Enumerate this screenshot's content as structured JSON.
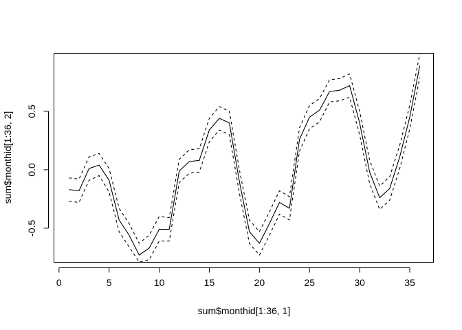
{
  "chart_data": {
    "type": "line",
    "title": "",
    "xlabel": "sum$monthid[1:36, 1]",
    "ylabel": "sum$monthid[1:36, 2]",
    "xlim": [
      0,
      36.5
    ],
    "ylim": [
      -0.79,
      0.99
    ],
    "x_ticks": [
      0,
      5,
      10,
      15,
      20,
      25,
      30,
      35
    ],
    "y_ticks": [
      -0.5,
      0.0,
      0.5
    ],
    "y_tick_labels": [
      "-0.5",
      "0.0",
      "0.5"
    ],
    "grid": false,
    "legend": "none",
    "x": [
      1,
      2,
      3,
      4,
      5,
      6,
      7,
      8,
      9,
      10,
      11,
      12,
      13,
      14,
      15,
      16,
      17,
      18,
      19,
      20,
      21,
      22,
      23,
      24,
      25,
      26,
      27,
      28,
      29,
      30,
      31,
      32,
      33,
      34,
      35,
      36
    ],
    "series": [
      {
        "style": "solid",
        "color": "#000000",
        "values": [
          -0.17,
          -0.18,
          0.01,
          0.04,
          -0.09,
          -0.43,
          -0.56,
          -0.73,
          -0.67,
          -0.51,
          -0.51,
          -0.01,
          0.07,
          0.08,
          0.34,
          0.44,
          0.4,
          -0.1,
          -0.53,
          -0.63,
          -0.46,
          -0.28,
          -0.33,
          0.26,
          0.45,
          0.51,
          0.67,
          0.68,
          0.72,
          0.4,
          -0.02,
          -0.24,
          -0.16,
          0.11,
          0.45,
          0.89
        ]
      },
      {
        "style": "dashed",
        "color": "#000000",
        "values": [
          -0.07,
          -0.08,
          0.11,
          0.14,
          0.01,
          -0.33,
          -0.46,
          -0.63,
          -0.56,
          -0.4,
          -0.41,
          0.09,
          0.17,
          0.18,
          0.44,
          0.54,
          0.5,
          0.0,
          -0.43,
          -0.53,
          -0.36,
          -0.18,
          -0.23,
          0.36,
          0.55,
          0.61,
          0.77,
          0.78,
          0.82,
          0.5,
          0.08,
          -0.14,
          -0.06,
          0.21,
          0.55,
          0.99
        ]
      },
      {
        "style": "dashed",
        "color": "#000000",
        "values": [
          -0.27,
          -0.28,
          -0.09,
          -0.05,
          -0.19,
          -0.53,
          -0.66,
          -0.79,
          -0.77,
          -0.61,
          -0.61,
          -0.11,
          -0.03,
          -0.02,
          0.24,
          0.34,
          0.3,
          -0.2,
          -0.63,
          -0.73,
          -0.56,
          -0.38,
          -0.43,
          0.16,
          0.35,
          0.41,
          0.58,
          0.59,
          0.62,
          0.3,
          -0.12,
          -0.34,
          -0.26,
          0.01,
          0.35,
          0.79
        ]
      }
    ]
  }
}
